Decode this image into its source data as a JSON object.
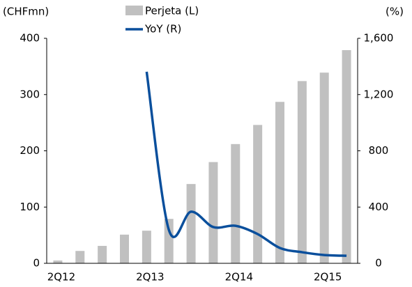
{
  "chart_data": {
    "type": "bar_line",
    "y_label": "(CHFmn)",
    "y2_label": "(%)",
    "categories": [
      "2Q12",
      null,
      null,
      null,
      "2Q13",
      null,
      null,
      null,
      "2Q14",
      null,
      null,
      null,
      "2Q15",
      null
    ],
    "series": [
      {
        "name": "Perjeta (L)",
        "type": "bar",
        "color": "#c0c0c0",
        "values": [
          5,
          22,
          31,
          51,
          58,
          79,
          141,
          180,
          212,
          246,
          287,
          324,
          339,
          379
        ]
      },
      {
        "name": "YoY (R)",
        "type": "line",
        "axis": "y2",
        "color": "#0a4f9c",
        "values": [
          null,
          null,
          null,
          null,
          1362,
          238,
          367,
          258,
          267,
          208,
          109,
          79,
          59,
          54
        ]
      }
    ],
    "ylim": [
      0,
      400
    ],
    "yticks": [
      0,
      100,
      200,
      300,
      400
    ],
    "y2lim": [
      0,
      1600
    ],
    "y2ticks": [
      0,
      400,
      800,
      {
        "value": 1200,
        "label": "1,200"
      },
      {
        "value": 1600,
        "label": "1,600"
      }
    ]
  }
}
